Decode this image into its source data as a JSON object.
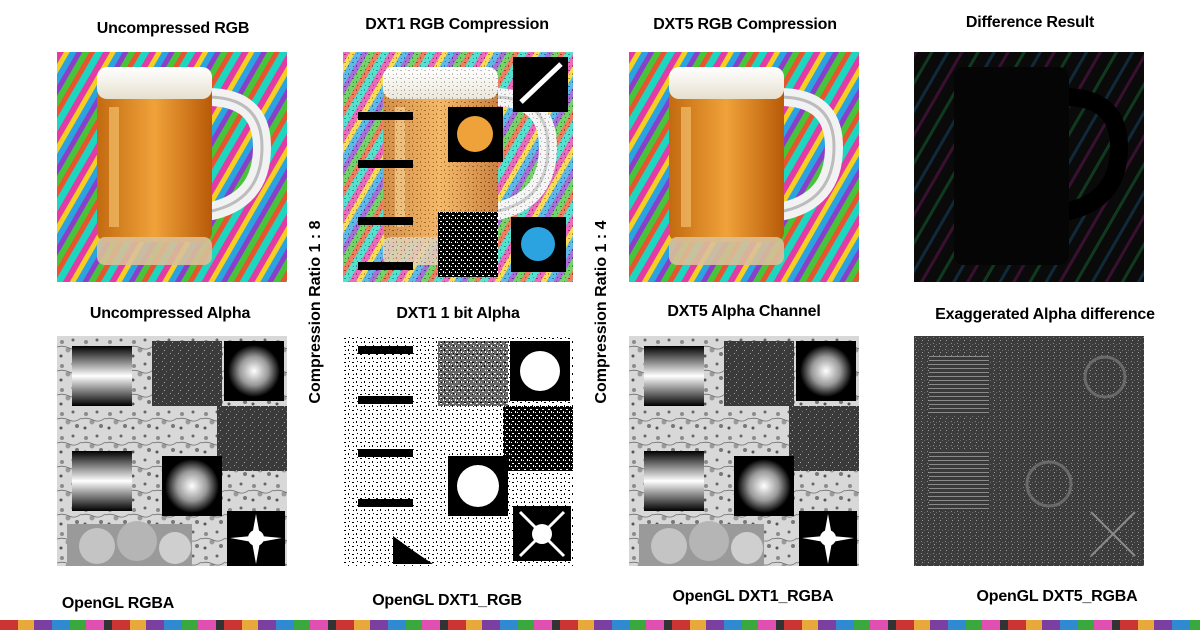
{
  "column_titles": [
    "Uncompressed RGB",
    "DXT1 RGB Compression",
    "DXT5 RGB Compression",
    "Difference Result"
  ],
  "row2_titles": [
    "Uncompressed Alpha",
    "DXT1 1 bit Alpha",
    "DXT5 Alpha Channel",
    "Exaggerated Alpha difference"
  ],
  "format_labels": [
    "OpenGL RGBA",
    "OpenGL DXT1_RGB",
    "OpenGL DXT1_RGBA",
    "OpenGL DXT5_RGBA"
  ],
  "ratio_labels": [
    "Compression Ratio 1 : 8",
    "Compression Ratio 1 : 4"
  ]
}
